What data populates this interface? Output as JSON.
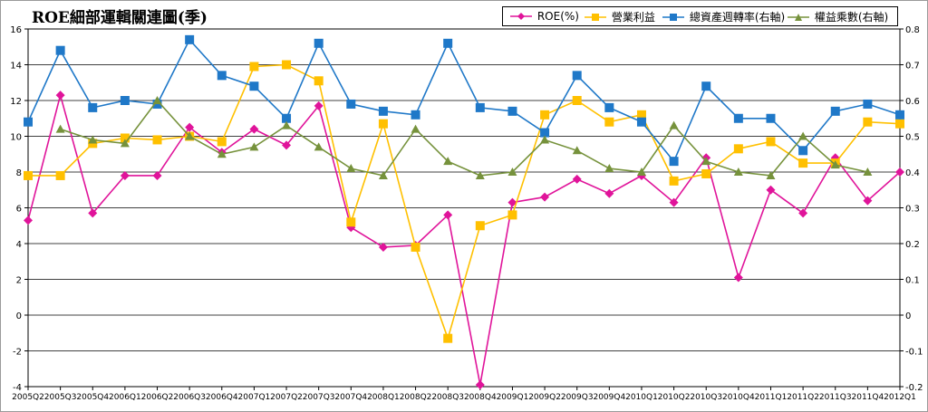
{
  "chart_data": {
    "type": "line",
    "title": "ROE細部運輯關連圖(季)",
    "categories": [
      "2005Q2",
      "2005Q3",
      "2005Q4",
      "2006Q1",
      "2006Q2",
      "2006Q3",
      "2006Q4",
      "2007Q1",
      "2007Q2",
      "2007Q3",
      "2007Q4",
      "2008Q1",
      "2008Q2",
      "2008Q3",
      "2008Q4",
      "2009Q1",
      "2009Q2",
      "2009Q3",
      "2009Q4",
      "2010Q1",
      "2010Q2",
      "2010Q3",
      "2010Q4",
      "2011Q1",
      "2011Q2",
      "2011Q3",
      "2011Q4",
      "2012Q1"
    ],
    "y_left": {
      "min": -4,
      "max": 16,
      "ticks": [
        "-4",
        "-2",
        "0",
        "2",
        "4",
        "6",
        "8",
        "10",
        "12",
        "14",
        "16"
      ]
    },
    "y_right": {
      "min": -0.2,
      "max": 0.8,
      "ticks": [
        "-0.2",
        "-0.1",
        "0",
        "0.1",
        "0.2",
        "0.3",
        "0.4",
        "0.5",
        "0.6",
        "0.7",
        "0.8"
      ]
    },
    "grid": true,
    "legend_position": "top-right",
    "series": [
      {
        "name": "ROE(%)",
        "axis": "left",
        "color": "#e0149a",
        "marker": "diamond",
        "values": [
          5.3,
          12.3,
          5.7,
          7.8,
          7.8,
          10.5,
          9.1,
          10.4,
          9.5,
          11.7,
          4.9,
          3.8,
          3.9,
          5.6,
          -3.9,
          6.3,
          6.6,
          7.6,
          6.8,
          7.8,
          6.3,
          8.8,
          2.1,
          7.0,
          5.7,
          8.8,
          6.4,
          8.0
        ]
      },
      {
        "name": "營業利益",
        "axis": "left",
        "color": "#ffc000",
        "marker": "square",
        "values": [
          7.8,
          7.8,
          9.6,
          9.9,
          9.8,
          10.0,
          9.7,
          13.9,
          14.0,
          13.1,
          5.2,
          10.7,
          3.8,
          -1.3,
          5.0,
          5.6,
          11.2,
          12.0,
          10.8,
          11.2,
          7.5,
          7.9,
          9.3,
          9.7,
          8.5,
          8.5,
          10.8,
          10.7
        ]
      },
      {
        "name": "總資產週轉率(右軸)",
        "axis": "right",
        "color": "#1f78c8",
        "marker": "square",
        "values": [
          0.54,
          0.74,
          0.58,
          0.6,
          0.59,
          0.77,
          0.67,
          0.64,
          0.55,
          0.76,
          0.59,
          0.57,
          0.56,
          0.76,
          0.58,
          0.57,
          0.51,
          0.67,
          0.58,
          0.54,
          0.43,
          0.64,
          0.55,
          0.55,
          0.46,
          0.57,
          0.59,
          0.56
        ]
      },
      {
        "name": "權益乘數(右軸)",
        "axis": "right",
        "color": "#76923c",
        "marker": "triangle",
        "values": [
          null,
          0.52,
          0.49,
          0.48,
          0.6,
          0.5,
          0.45,
          0.47,
          0.53,
          0.47,
          0.41,
          0.39,
          0.52,
          0.43,
          0.39,
          0.4,
          0.49,
          0.46,
          0.41,
          0.4,
          0.53,
          0.43,
          0.4,
          0.39,
          0.5,
          0.42,
          0.4,
          null
        ]
      }
    ]
  }
}
